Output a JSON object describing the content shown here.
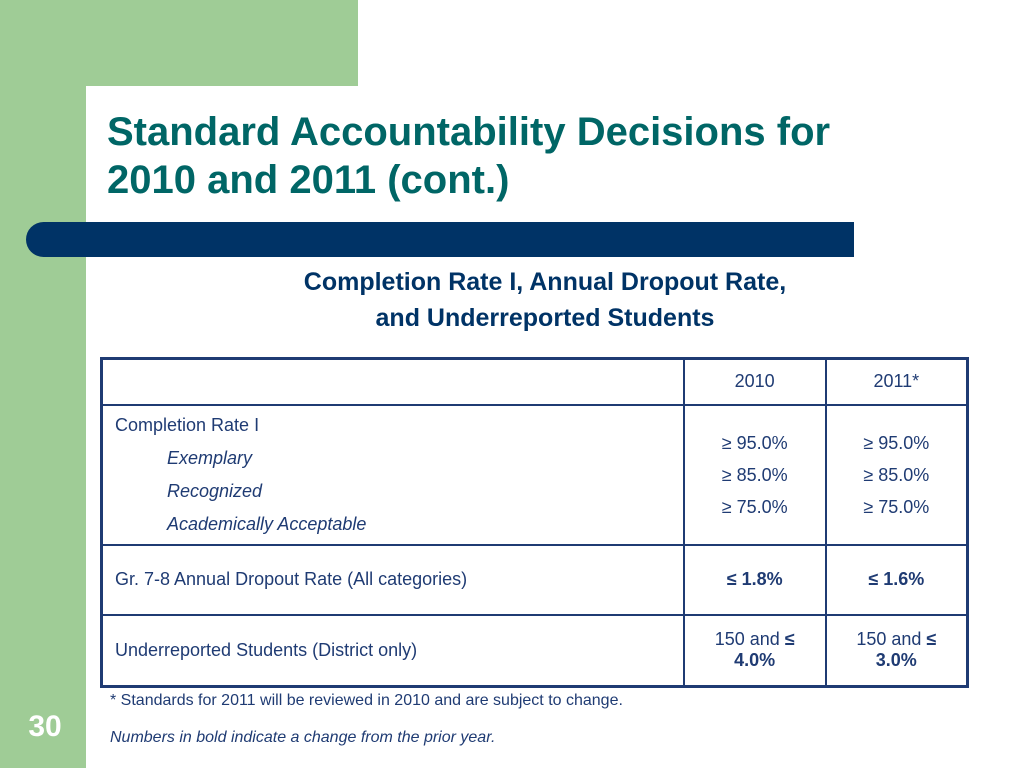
{
  "slide": {
    "title_line1": "Standard Accountability Decisions for",
    "title_line2": "2010 and 2011 (cont.)",
    "subtitle_line1": "Completion Rate I, Annual Dropout Rate,",
    "subtitle_line2": "and Underreported Students",
    "slide_number": "30"
  },
  "table": {
    "headers": [
      "",
      "2010",
      "2011*"
    ],
    "completion": {
      "label": "Completion Rate I",
      "sublabels": [
        "Exemplary",
        "Recognized",
        "Academically Acceptable"
      ],
      "values_2010": [
        "≥ 95.0%",
        "≥ 85.0%",
        "≥ 75.0%"
      ],
      "values_2011": [
        "≥ 95.0%",
        "≥ 85.0%",
        "≥ 75.0%"
      ]
    },
    "dropout": {
      "label": "Gr. 7-8 Annual Dropout Rate (All categories)",
      "value_2010": "≤ 1.8%",
      "value_2011": "≤ 1.6%"
    },
    "underreported": {
      "label": "Underreported Students (District only)",
      "value_2010_prefix": "150 and ",
      "value_2010_bold": "≤ 4.0%",
      "value_2011_prefix": "150 and ",
      "value_2011_bold": "≤ 3.0%"
    }
  },
  "footnotes": {
    "note1": "* Standards for 2011 will be reviewed in 2010 and are subject to change.",
    "note2": "Numbers in bold indicate a change from the prior year."
  },
  "colors": {
    "green_accent": "#9fcc96",
    "title_teal": "#006666",
    "navy": "#003366",
    "table_text": "#1f3b73"
  }
}
